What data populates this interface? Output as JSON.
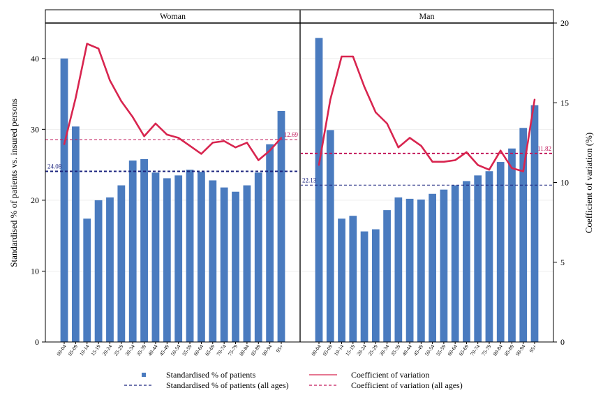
{
  "chart_data": {
    "type": "bar",
    "ylabel_left": "Standardised % of patients vs. insured persons",
    "ylabel_right": "Coefficient of variation (%)",
    "ylim_left": [
      0,
      45
    ],
    "ylim_right": [
      0,
      20
    ],
    "yticks_left": [
      "0",
      "10",
      "20",
      "30",
      "40"
    ],
    "yticks_right": [
      "0",
      "5",
      "10",
      "15",
      "20"
    ],
    "categories": [
      "00-04",
      "05-09",
      "10-14",
      "15-19",
      "20-24",
      "25-29",
      "30-34",
      "35-39",
      "40-44",
      "45-49",
      "50-54",
      "55-59",
      "60-64",
      "65-69",
      "70-74",
      "75-79",
      "80-84",
      "85-89",
      "90-94",
      "95+"
    ],
    "grid": true,
    "legend_position": "bottom",
    "colors": {
      "bar": "#4a7bbf",
      "cv": "#d8254f",
      "avg_pct": "#1a237e",
      "avg_cv": "#c2185b"
    },
    "panels": [
      {
        "title": "Woman",
        "bar_values": [
          40.0,
          30.4,
          17.4,
          20.0,
          20.4,
          22.1,
          25.6,
          25.8,
          23.9,
          23.1,
          23.5,
          24.3,
          24.0,
          22.8,
          21.8,
          21.2,
          22.1,
          23.9,
          27.9,
          32.6
        ],
        "cv_values": [
          12.4,
          15.3,
          18.7,
          18.4,
          16.4,
          15.1,
          14.1,
          12.9,
          13.7,
          13.0,
          12.8,
          12.3,
          11.8,
          12.5,
          12.6,
          12.2,
          12.5,
          11.4,
          12.0,
          12.8
        ],
        "avg_pct": 24.08,
        "avg_pct_label": "24.08",
        "avg_cv": 12.69,
        "avg_cv_label": "12.69"
      },
      {
        "title": "Man",
        "bar_values": [
          42.9,
          29.9,
          17.4,
          17.8,
          15.6,
          15.9,
          18.6,
          20.4,
          20.2,
          20.1,
          20.9,
          21.5,
          22.1,
          22.7,
          23.5,
          24.1,
          25.4,
          27.3,
          30.2,
          33.4
        ],
        "cv_values": [
          11.1,
          15.2,
          17.9,
          17.9,
          16.0,
          14.4,
          13.7,
          12.2,
          12.8,
          12.3,
          11.3,
          11.3,
          11.4,
          11.9,
          11.1,
          10.8,
          12.0,
          10.9,
          10.7,
          15.2
        ],
        "avg_pct": 22.13,
        "avg_pct_label": "22.13",
        "avg_cv": 11.82,
        "avg_cv_label": "11.82"
      }
    ],
    "legend": [
      {
        "key": "bar",
        "label": "Standardised % of patients"
      },
      {
        "key": "cv",
        "label": "Coefficient of variation"
      },
      {
        "key": "avg_pct",
        "label": "Standardised % of patients (all ages)"
      },
      {
        "key": "avg_cv",
        "label": "Coefficient of variation (all ages)"
      }
    ]
  }
}
